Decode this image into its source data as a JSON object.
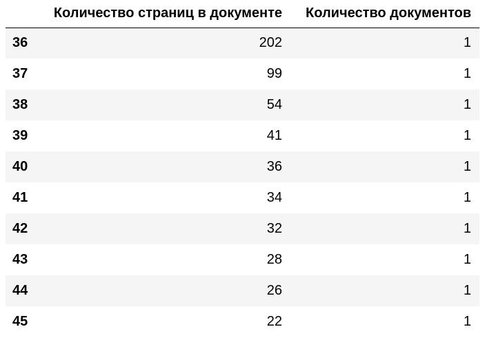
{
  "table": {
    "columns": {
      "index": "",
      "pages": "Количество страниц в документе",
      "docs": "Количество документов"
    },
    "rows": [
      {
        "index": "36",
        "pages": "202",
        "docs": "1"
      },
      {
        "index": "37",
        "pages": "99",
        "docs": "1"
      },
      {
        "index": "38",
        "pages": "54",
        "docs": "1"
      },
      {
        "index": "39",
        "pages": "41",
        "docs": "1"
      },
      {
        "index": "40",
        "pages": "36",
        "docs": "1"
      },
      {
        "index": "41",
        "pages": "34",
        "docs": "1"
      },
      {
        "index": "42",
        "pages": "32",
        "docs": "1"
      },
      {
        "index": "43",
        "pages": "28",
        "docs": "1"
      },
      {
        "index": "44",
        "pages": "26",
        "docs": "1"
      },
      {
        "index": "45",
        "pages": "22",
        "docs": "1"
      }
    ],
    "colors": {
      "stripe": "#f5f5f5",
      "background": "#ffffff",
      "header_rule": "#000000"
    }
  }
}
